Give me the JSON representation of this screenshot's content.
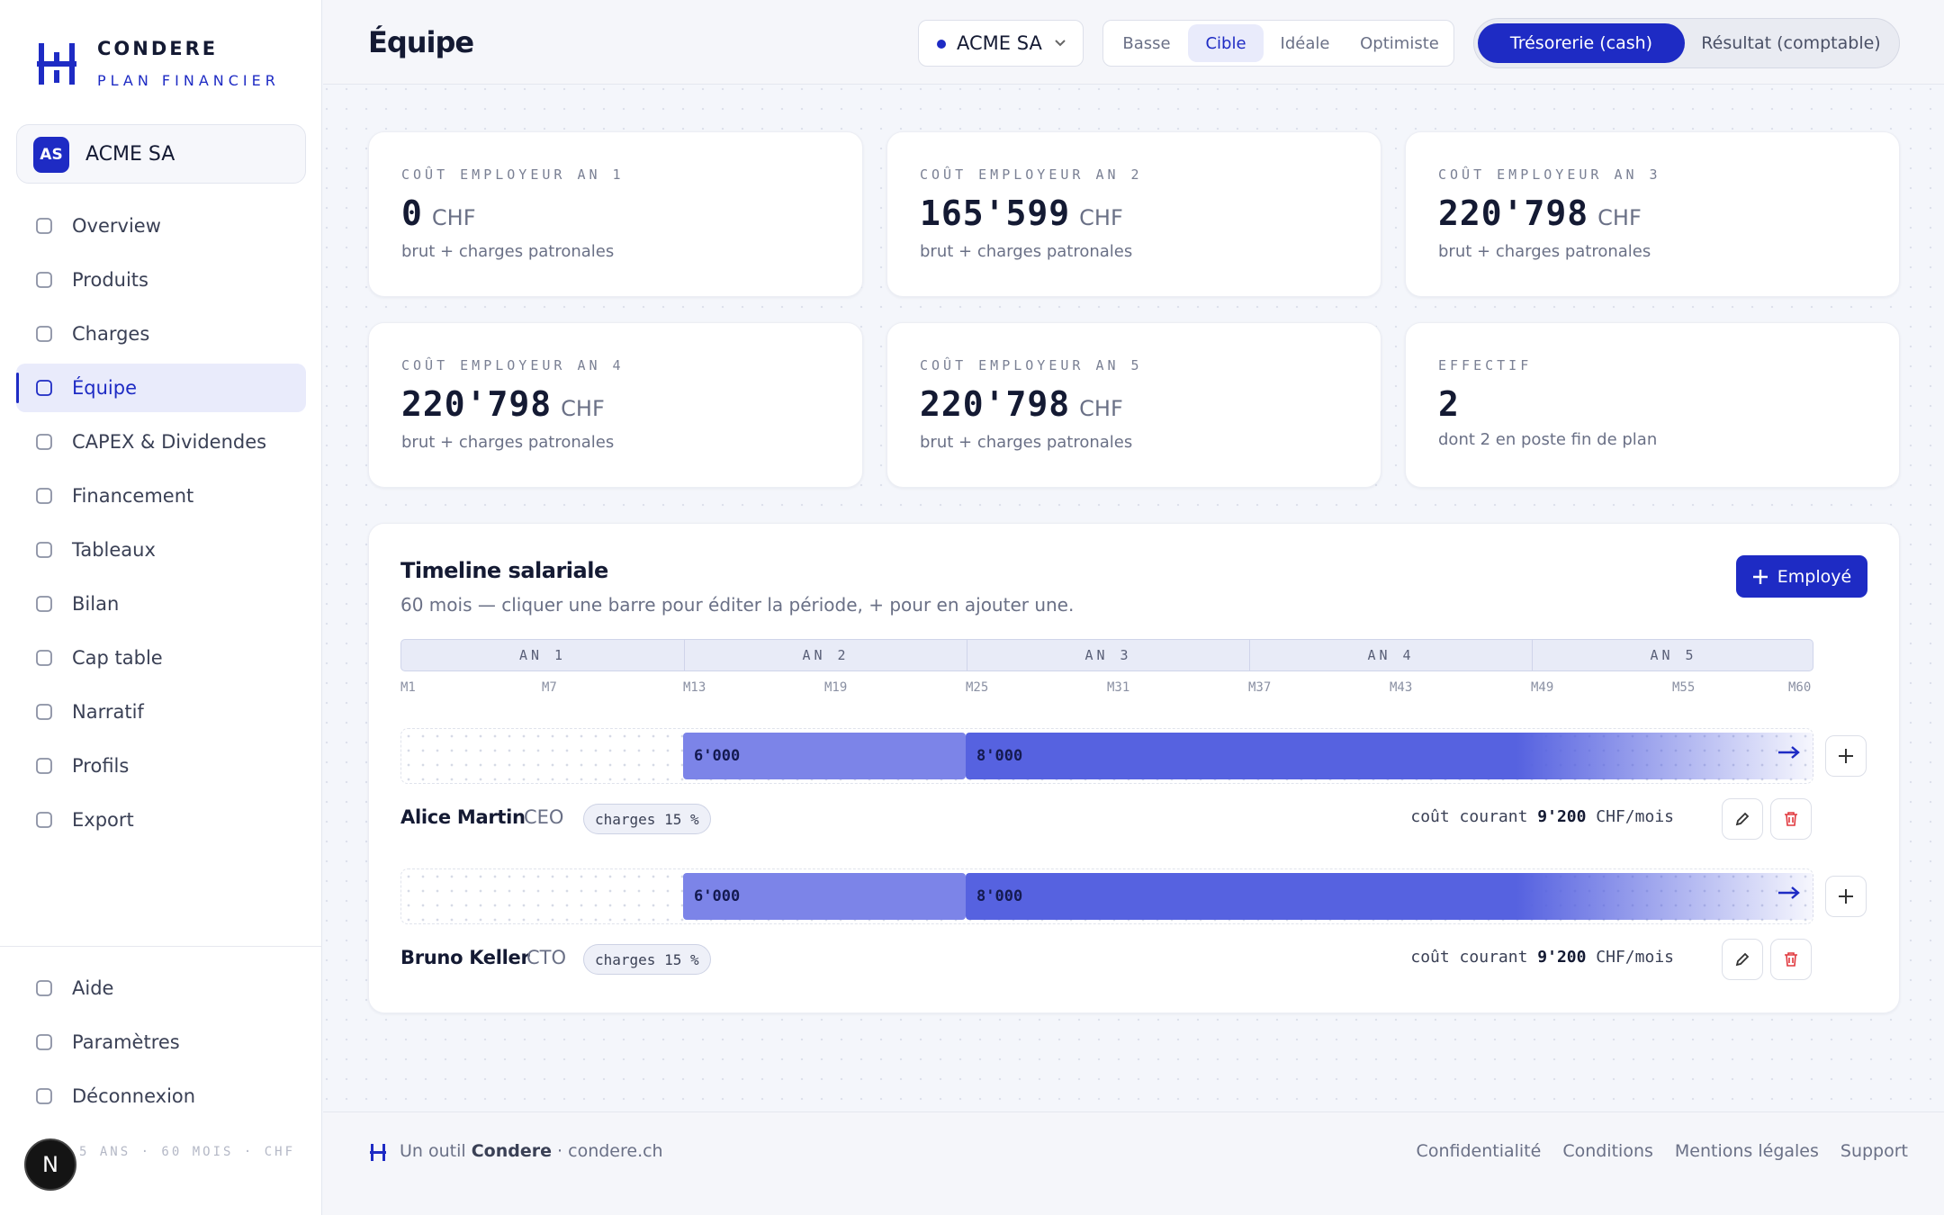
{
  "brand": {
    "name": "CONDERE",
    "tagline": "PLAN FINANCIER"
  },
  "company": {
    "initials": "AS",
    "name": "ACME SA"
  },
  "nav": [
    "Overview",
    "Produits",
    "Charges",
    "Équipe",
    "CAPEX & Dividendes",
    "Financement",
    "Tableaux",
    "Bilan",
    "Cap table",
    "Narratif",
    "Profils",
    "Export"
  ],
  "nav_active": 3,
  "bottom_nav": [
    "Aide",
    "Paramètres",
    "Déconnexion"
  ],
  "sidebar_footer": "5 ANS · 60 MOIS · CHF",
  "avatar": "N",
  "header": {
    "title": "Équipe",
    "company_select": "ACME SA",
    "scenarios": [
      "Basse",
      "Cible",
      "Idéale",
      "Optimiste"
    ],
    "scenario_active": 1,
    "modes": [
      "Trésorerie (cash)",
      "Résultat (comptable)"
    ],
    "mode_active": 0
  },
  "kpis": [
    {
      "label": "COÛT EMPLOYEUR AN 1",
      "value": "0",
      "unit": "CHF",
      "note": "brut + charges patronales"
    },
    {
      "label": "COÛT EMPLOYEUR AN 2",
      "value": "165'599",
      "unit": "CHF",
      "note": "brut + charges patronales"
    },
    {
      "label": "COÛT EMPLOYEUR AN 3",
      "value": "220'798",
      "unit": "CHF",
      "note": "brut + charges patronales"
    },
    {
      "label": "COÛT EMPLOYEUR AN 4",
      "value": "220'798",
      "unit": "CHF",
      "note": "brut + charges patronales"
    },
    {
      "label": "COÛT EMPLOYEUR AN 5",
      "value": "220'798",
      "unit": "CHF",
      "note": "brut + charges patronales"
    },
    {
      "label": "EFFECTIF",
      "value": "2",
      "note": "dont 2 en poste fin de plan"
    }
  ],
  "timeline": {
    "title": "Timeline salariale",
    "subtitle": "60 mois — cliquer une barre pour éditer la période, + pour en ajouter une.",
    "add_button": "Employé",
    "years": [
      "AN 1",
      "AN 2",
      "AN 3",
      "AN 4",
      "AN 5"
    ],
    "month_ticks": [
      "M1",
      "M7",
      "M13",
      "M19",
      "M25",
      "M31",
      "M37",
      "M43",
      "M49",
      "M55",
      "M60"
    ],
    "employees": [
      {
        "name": "Alice Martin",
        "role": "CEO",
        "charges": "charges 15 %",
        "periods": [
          "6'000",
          "8'000"
        ],
        "cost_label": "coût courant",
        "cost": "9'200",
        "cost_unit": "CHF/mois"
      },
      {
        "name": "Bruno Keller",
        "role": "CTO",
        "charges": "charges 15 %",
        "periods": [
          "6'000",
          "8'000"
        ],
        "cost_label": "coût courant",
        "cost": "9'200",
        "cost_unit": "CHF/mois"
      }
    ]
  },
  "footer": {
    "prefix": "Un outil",
    "brand": "Condere",
    "site": "· condere.ch",
    "links": [
      "Confidentialité",
      "Conditions",
      "Mentions légales",
      "Support"
    ]
  }
}
